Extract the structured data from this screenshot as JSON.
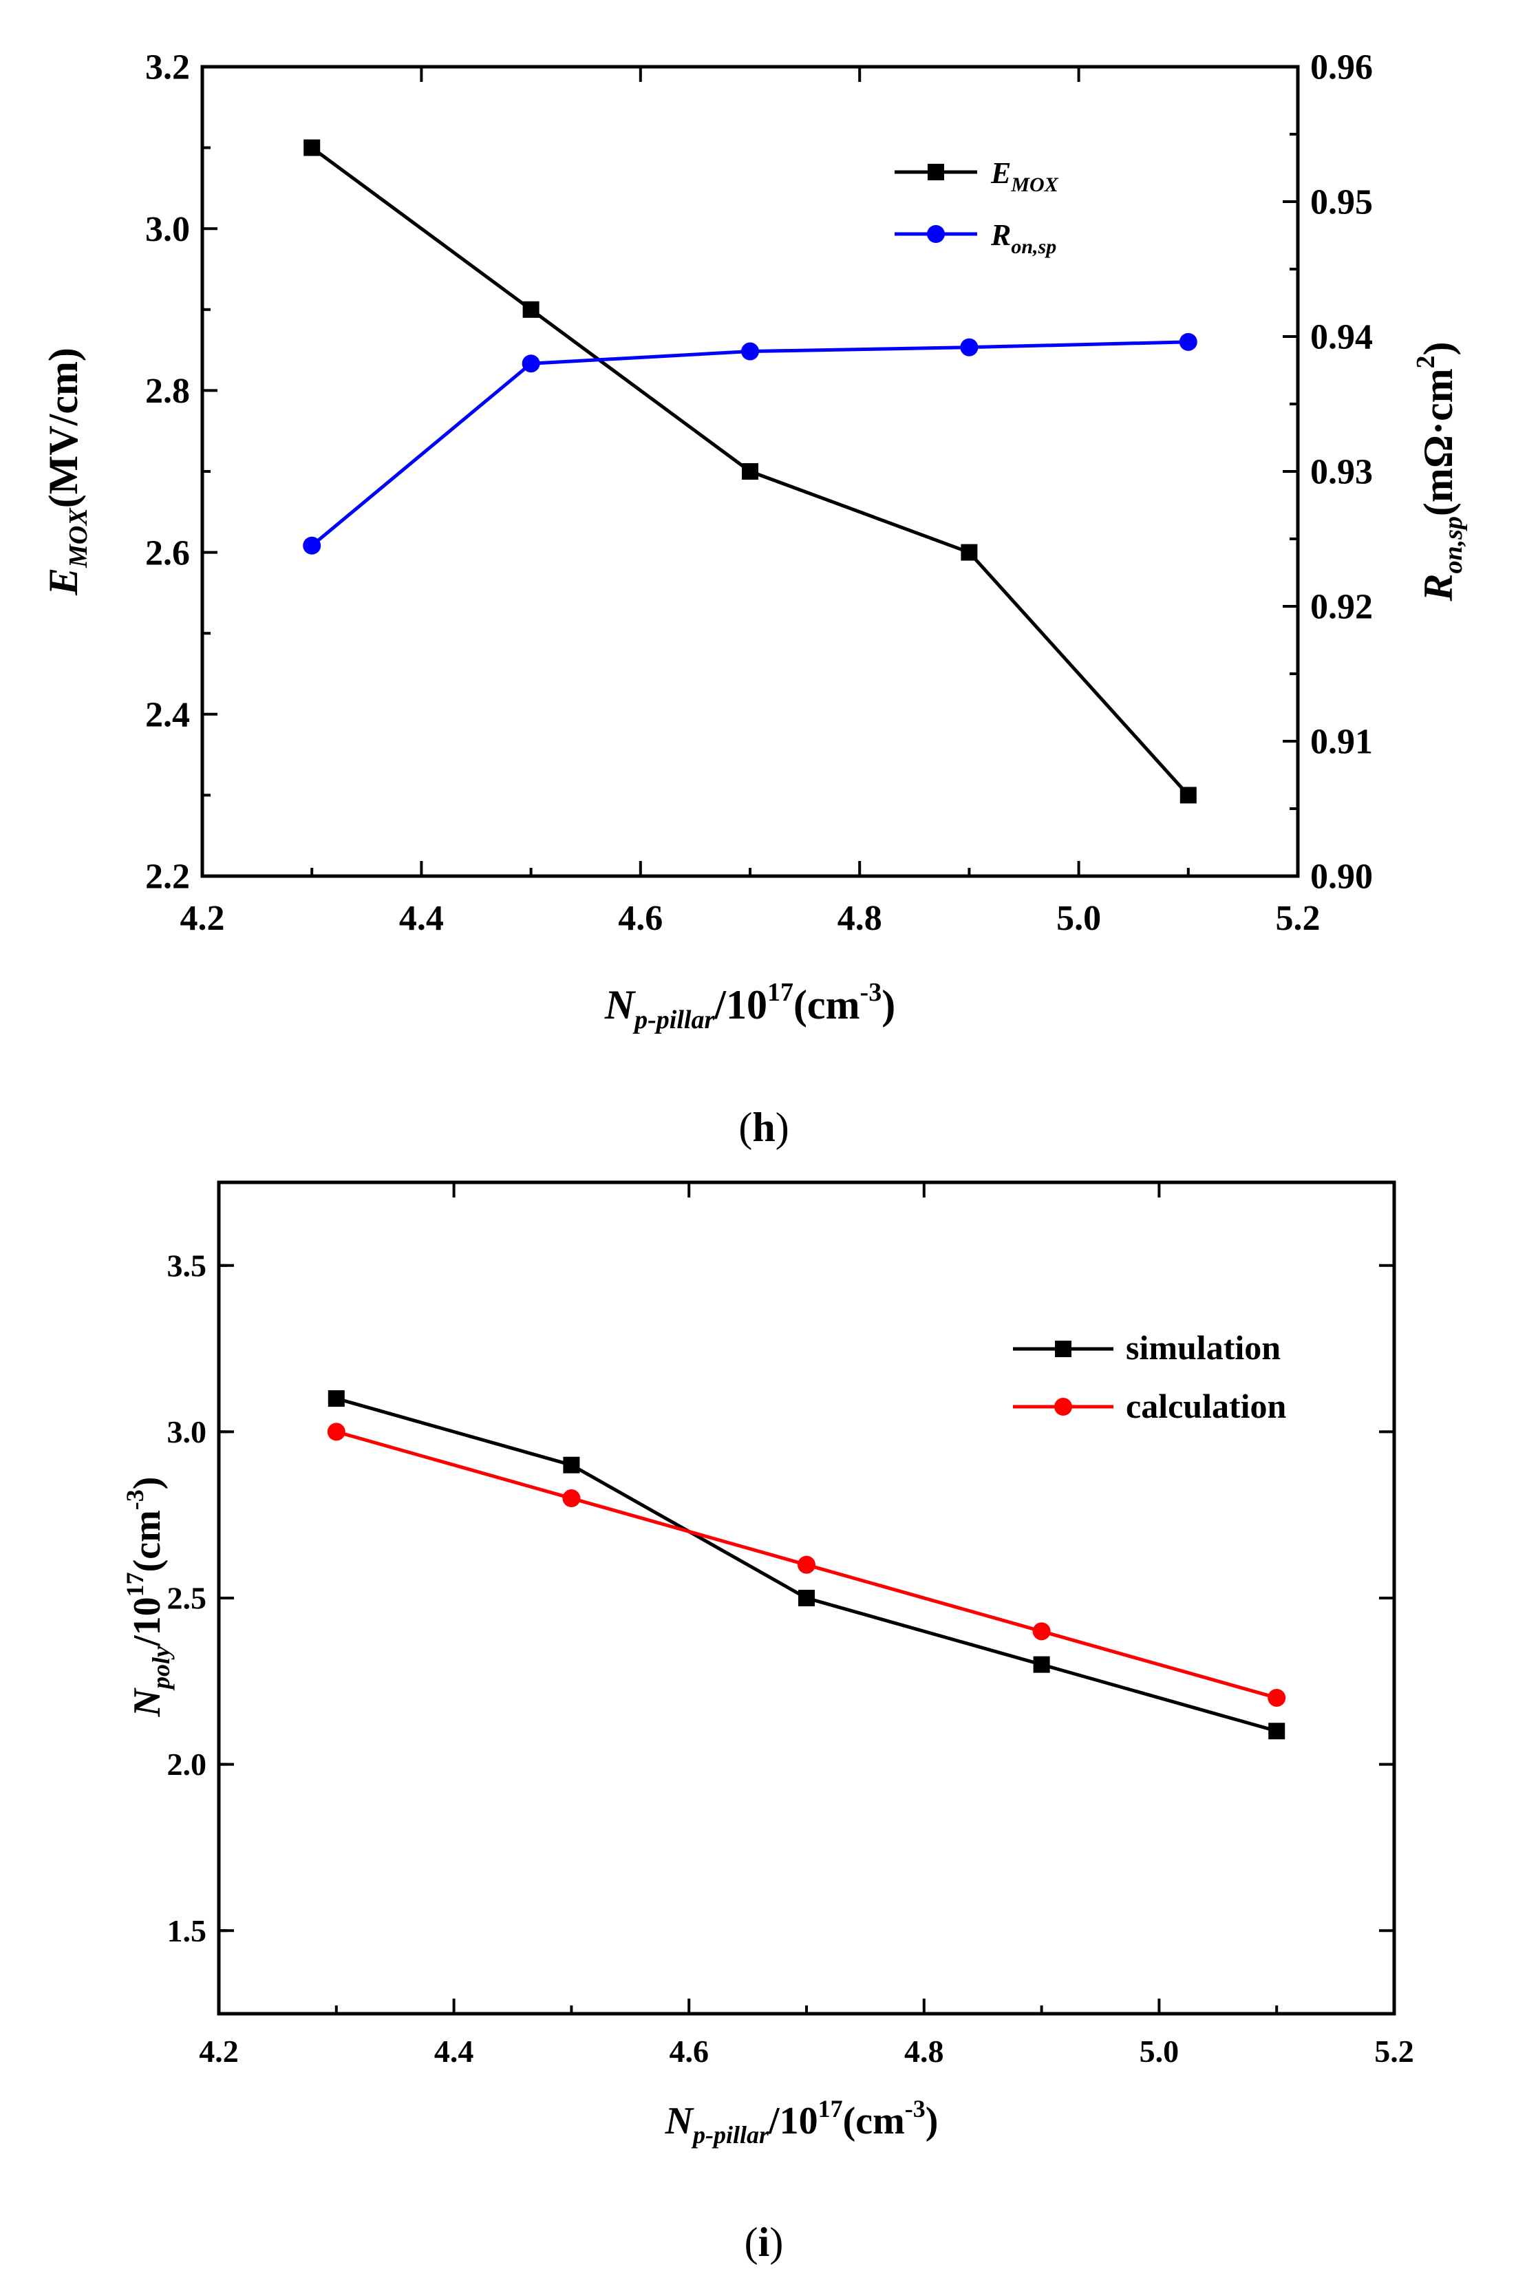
{
  "chart_data": [
    {
      "type": "line",
      "panel_label": "(h)",
      "x": [
        4.3,
        4.5,
        4.7,
        4.9,
        5.1
      ],
      "xlim": [
        4.2,
        5.2
      ],
      "xticks": [
        "4.2",
        "4.4",
        "4.6",
        "4.8",
        "5.0",
        "5.2"
      ],
      "xlabel": {
        "main": "N",
        "sub": "p-pillar",
        "mid": "/10",
        "sup": "17",
        "tail": "(cm",
        "sup2": "-3",
        "end": ")"
      },
      "ylim": [
        2.2,
        3.2
      ],
      "yticks": [
        "2.2",
        "2.4",
        "2.6",
        "2.8",
        "3.0",
        "3.2"
      ],
      "ylabel": {
        "main": "E",
        "sub": "MOX",
        "tail": "(MV/cm)"
      },
      "y2lim": [
        0.9,
        0.96
      ],
      "y2ticks": [
        "0.90",
        "0.91",
        "0.92",
        "0.93",
        "0.94",
        "0.95",
        "0.96"
      ],
      "y2label": {
        "main": "R",
        "sub": "on,sp",
        "tail": "(mΩ·cm",
        "sup": "2",
        "end": ")"
      },
      "legend_position": "top-right",
      "series": [
        {
          "name": "E",
          "name_sub": "MOX",
          "axis": "left",
          "marker": "square",
          "color": "#000000",
          "values": [
            3.1,
            2.9,
            2.7,
            2.6,
            2.3
          ]
        },
        {
          "name": "R",
          "name_sub": "on,sp",
          "axis": "right",
          "marker": "circle",
          "color": "#0000ff",
          "values": [
            0.9245,
            0.938,
            0.9389,
            0.9392,
            0.9396
          ]
        }
      ]
    },
    {
      "type": "line",
      "panel_label": "(i)",
      "x": [
        4.3,
        4.5,
        4.7,
        4.9,
        5.1
      ],
      "xlim": [
        4.2,
        5.2
      ],
      "xticks": [
        "4.2",
        "4.4",
        "4.6",
        "4.8",
        "5.0",
        "5.2"
      ],
      "xlabel": {
        "main": "N",
        "sub": "p-pillar",
        "mid": "/10",
        "sup": "17",
        "tail": "(cm",
        "sup2": "-3",
        "end": ")"
      },
      "ylim": [
        1.25,
        3.75
      ],
      "yticks": [
        "1.5",
        "2.0",
        "2.5",
        "3.0",
        "3.5"
      ],
      "ylabel": {
        "main": "N",
        "sub": "poly",
        "mid": "/10",
        "sup": "17",
        "tail": "(cm",
        "sup2": "-3",
        "end": ")"
      },
      "legend_position": "top-right",
      "series": [
        {
          "name": "simulation",
          "marker": "square",
          "color": "#000000",
          "values": [
            3.1,
            2.9,
            2.5,
            2.3,
            2.1
          ]
        },
        {
          "name": "calculation",
          "marker": "circle",
          "color": "#ff0000",
          "values": [
            3.0,
            2.8,
            2.6,
            2.4,
            2.2
          ]
        }
      ]
    }
  ]
}
